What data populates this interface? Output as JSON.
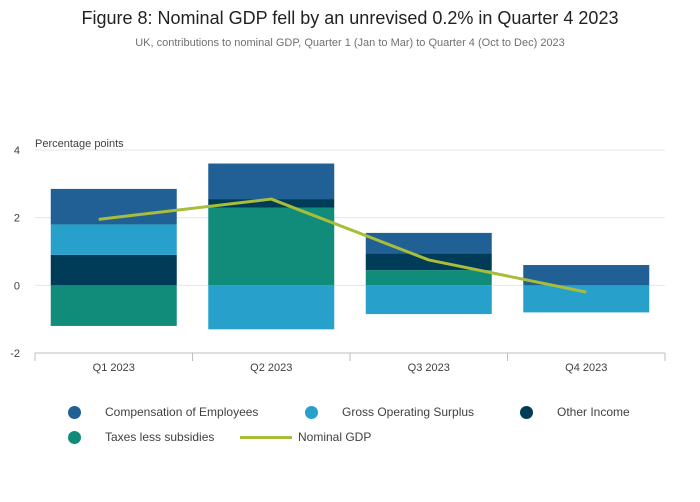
{
  "chart_data": {
    "type": "bar",
    "stacked": true,
    "title": "Figure 8: Nominal GDP fell by an unrevised 0.2% in Quarter 4 2023",
    "subtitle": "UK, contributions to nominal GDP, Quarter 1 (Jan to Mar) to Quarter 4 (Oct to Dec) 2023",
    "ylabel": "Percentage points",
    "xlabel": "",
    "ylim": [
      -2,
      4
    ],
    "yticks": [
      4,
      2,
      0,
      -2
    ],
    "grid": true,
    "legend_position": "bottom",
    "categories": [
      "Q1 2023",
      "Q2 2023",
      "Q3 2023",
      "Q4 2023"
    ],
    "series": [
      {
        "name": "Compensation of Employees",
        "color": "#206095",
        "values": [
          1.05,
          1.05,
          0.6,
          0.6
        ]
      },
      {
        "name": "Gross Operating Surplus",
        "color": "#27a0cc",
        "values": [
          0.9,
          -1.3,
          -0.85,
          -0.8
        ]
      },
      {
        "name": "Other Income",
        "color": "#003c57",
        "values": [
          0.9,
          0.25,
          0.5,
          0.0
        ]
      },
      {
        "name": "Taxes less subsidies",
        "color": "#118c7b",
        "values": [
          -1.2,
          2.3,
          0.45,
          0.0
        ]
      }
    ],
    "line_series": {
      "name": "Nominal GDP",
      "color": "#a8bd3a",
      "values": [
        1.95,
        2.55,
        0.75,
        -0.2
      ]
    }
  }
}
